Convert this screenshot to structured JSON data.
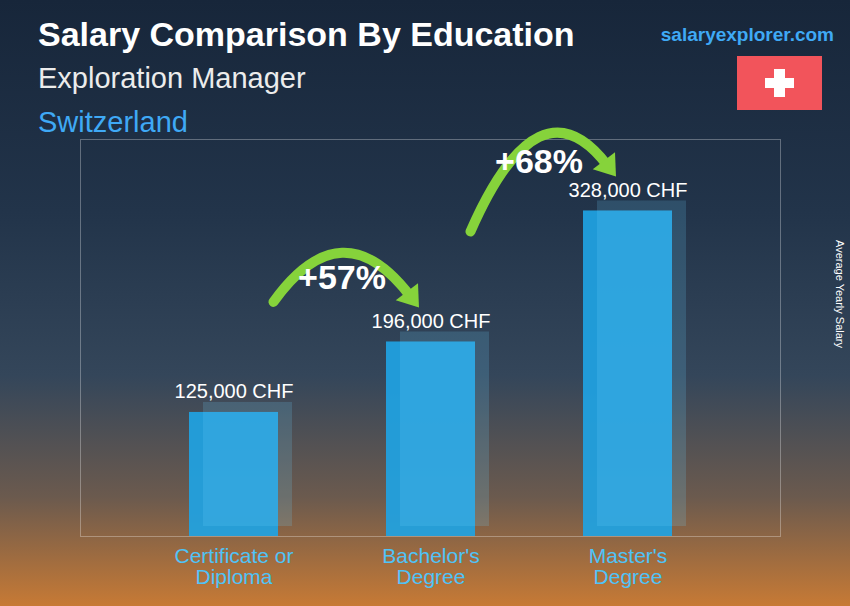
{
  "chart_data": {
    "type": "bar",
    "title": "Salary Comparison By Education",
    "subtitle": "Exploration Manager",
    "region": "Switzerland",
    "source": "salaryexplorer.com",
    "y_label": "Average Yearly Salary",
    "categories": [
      "Certificate or Diploma",
      "Bachelor's Degree",
      "Master's Degree"
    ],
    "values": [
      125000,
      196000,
      328000
    ],
    "value_labels": [
      "125,000 CHF",
      "196,000 CHF",
      "328,000 CHF"
    ],
    "data_labels": true,
    "annotations": [
      {
        "text": "+57%",
        "from": "Certificate or Diploma",
        "to": "Bachelor's Degree"
      },
      {
        "text": "+68%",
        "from": "Bachelor's Degree",
        "to": "Master's Degree"
      }
    ],
    "color": "#1fa3e3",
    "ylim": [
      0,
      400000
    ],
    "yticks": [],
    "tick_labels": "x",
    "grid": false
  }
}
